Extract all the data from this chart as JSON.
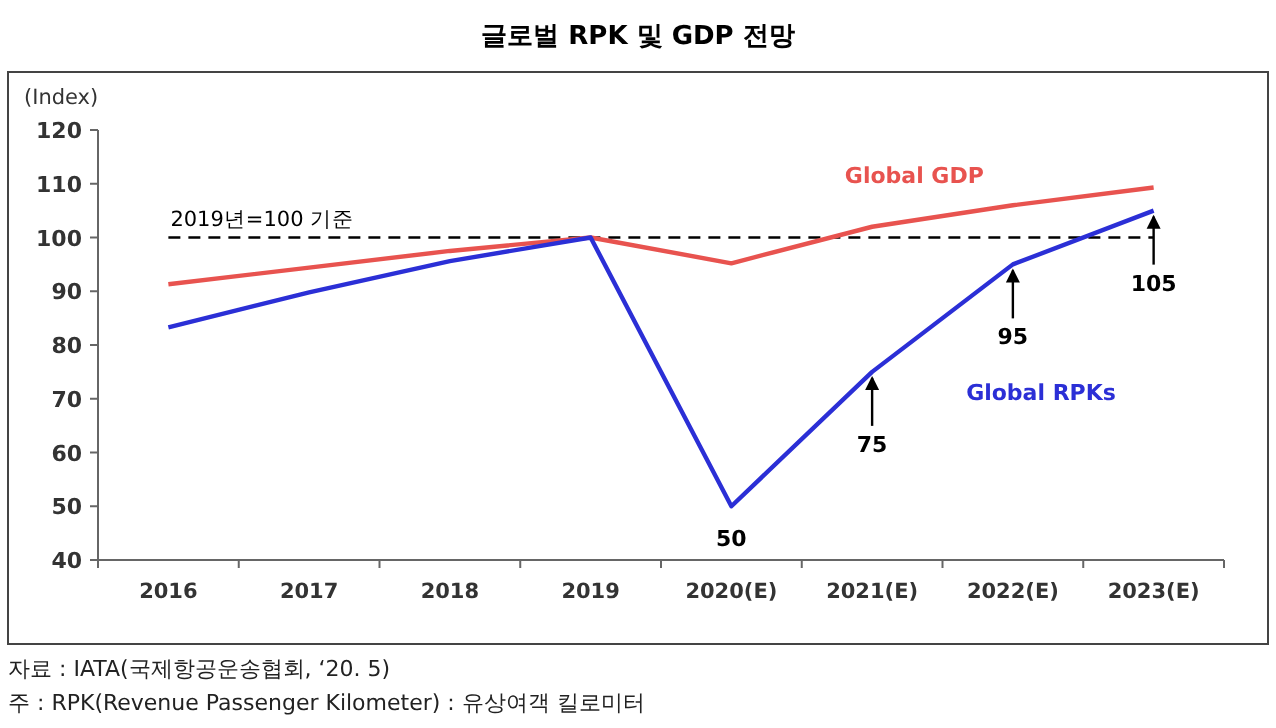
{
  "chart_data": {
    "type": "line",
    "title": "글로벌 RPK 및 GDP 전망",
    "ylabel": "(Index)",
    "categories": [
      "2016",
      "2017",
      "2018",
      "2019",
      "2020(E)",
      "2021(E)",
      "2022(E)",
      "2023(E)"
    ],
    "series": [
      {
        "name": "Global GDP",
        "color": "#e8534f",
        "values": [
          91.3,
          94.4,
          97.5,
          100,
          95.2,
          102,
          106,
          109.3
        ]
      },
      {
        "name": "Global RPKs",
        "color": "#2b2fd6",
        "values": [
          83.3,
          89.8,
          95.6,
          100,
          50,
          75,
          95,
          105
        ],
        "value_labels": [
          null,
          null,
          null,
          null,
          "50",
          "75",
          "95",
          "105"
        ]
      }
    ],
    "ylim": [
      40,
      120
    ],
    "yticks": [
      40,
      50,
      60,
      70,
      80,
      90,
      100,
      110,
      120
    ],
    "ref_lines": [
      {
        "axis": "y",
        "value": 100,
        "label": "2019년=100 기준",
        "color": "#000000",
        "line_style": "dashed"
      }
    ],
    "legend": false,
    "grid": false,
    "marker": "none",
    "line_style": "solid",
    "annotations": [
      "자료 : IATA(국제항공운송협회, ‘20. 5)",
      "주 : RPK(Revenue Passenger Kilometer) : 유상여객 킬로미터"
    ]
  }
}
